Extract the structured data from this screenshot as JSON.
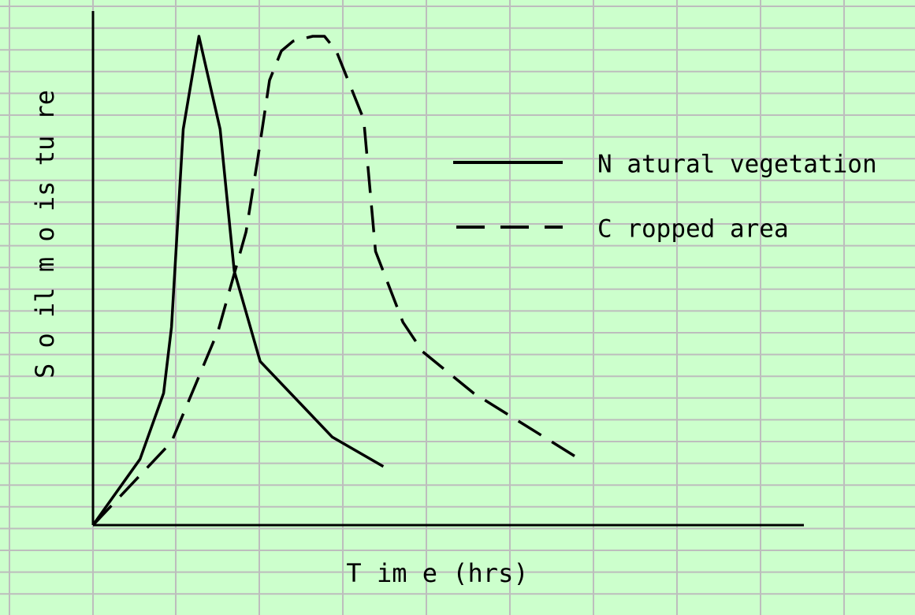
{
  "colors": {
    "background": "#ccffcc",
    "grid": "#bdbdbd",
    "line": "#000000"
  },
  "chart_data": {
    "type": "line",
    "xlabel": "T im e (hrs)",
    "ylabel": "S o il m o is tu re",
    "xlim": [
      0,
      10
    ],
    "ylim": [
      0,
      10
    ],
    "grid": true,
    "legend_position": "right",
    "series": [
      {
        "name": "N atural vegetation",
        "style": "solid",
        "x": [
          0,
          0.6,
          0.9,
          1.0,
          1.15,
          1.35,
          1.62,
          1.8,
          2.13,
          3.05,
          3.7
        ],
        "y": [
          0,
          1.35,
          2.7,
          4.05,
          8.1,
          10.0,
          8.1,
          5.2,
          3.35,
          1.8,
          1.2
        ]
      },
      {
        "name": "C ropped area",
        "style": "dashed",
        "x": [
          0,
          1.0,
          1.6,
          1.95,
          2.1,
          2.25,
          2.4,
          2.55,
          2.8,
          2.95,
          3.1,
          3.45,
          3.6,
          3.95,
          4.2,
          4.85,
          5.65,
          6.2
        ],
        "y": [
          0,
          1.7,
          4.0,
          6.0,
          7.5,
          9.1,
          9.7,
          9.9,
          10.0,
          10.0,
          9.7,
          8.3,
          5.6,
          4.15,
          3.55,
          2.7,
          1.9,
          1.35
        ]
      }
    ]
  }
}
